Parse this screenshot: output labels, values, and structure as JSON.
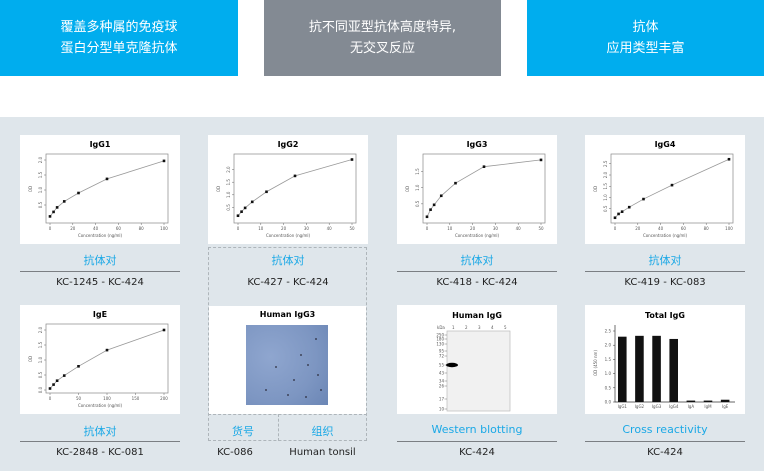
{
  "banners": [
    {
      "line1": "覆盖多种属的免疫球",
      "line2": "蛋白分型单克隆抗体"
    },
    {
      "line1": "抗不同亚型抗体高度特异,",
      "line2": "无交叉反应"
    },
    {
      "line1": "抗体",
      "line2": "应用类型丰富"
    }
  ],
  "colors": {
    "banner_blue": "#00adee",
    "banner_gray": "#838a93",
    "panel": "#dfe6eb",
    "label": "#1aa8e6"
  },
  "cards": [
    {
      "label": "抗体对",
      "code": "KC-1245 - KC-424"
    },
    {
      "label": "",
      "code": "KC-427 - KC-424"
    },
    {
      "label": "抗体对",
      "code": "KC-418 - KC-424"
    },
    {
      "label": "抗体对",
      "code": "KC-419 - KC-083"
    },
    {
      "label": "抗体对",
      "code": "KC-2848 - KC-081"
    },
    {
      "label_left": "货号",
      "label_right": "组织",
      "code_left": "KC-086",
      "code_right": "Human tonsil"
    },
    {
      "label": "Western blotting",
      "code": "KC-424"
    },
    {
      "label": "Cross reactivity",
      "code": "KC-424"
    }
  ],
  "card2_label": "抗体对",
  "ihc": {
    "title": "Human IgG3"
  },
  "western": {
    "title": "Human IgG",
    "unit": "kDa",
    "lanes": [
      "1",
      "2",
      "3",
      "4",
      "5"
    ],
    "markers": [
      "250",
      "180",
      "130",
      "95",
      "72",
      "55",
      "43",
      "34",
      "26",
      "17",
      "10"
    ],
    "band": {
      "lane": "1",
      "kDa": "55"
    }
  },
  "chart_data": [
    {
      "type": "line",
      "title": "IgG1",
      "xlabel": "Concentration (ng/ml)",
      "ylabel": "OD",
      "x": [
        0,
        3.125,
        6.25,
        12.5,
        25,
        50,
        100
      ],
      "y": [
        0.12,
        0.27,
        0.42,
        0.62,
        0.9,
        1.37,
        1.97
      ],
      "xticks": [
        0,
        20,
        40,
        60,
        80,
        100
      ],
      "yticks": [
        0.5,
        1.0,
        1.5,
        2.0
      ],
      "xlim": [
        0,
        100
      ],
      "ylim": [
        0,
        2.1
      ]
    },
    {
      "type": "line",
      "title": "IgG2",
      "xlabel": "Concentration (ng/ml)",
      "ylabel": "OD",
      "x": [
        0,
        1.5625,
        3.125,
        6.25,
        12.5,
        25,
        50
      ],
      "y": [
        0.17,
        0.33,
        0.48,
        0.72,
        1.12,
        1.75,
        2.4
      ],
      "xticks": [
        0,
        10,
        20,
        30,
        40,
        50
      ],
      "yticks": [
        0.5,
        1.0,
        1.5,
        2.0
      ],
      "xlim": [
        0,
        50
      ],
      "ylim": [
        0,
        2.5
      ]
    },
    {
      "type": "line",
      "title": "IgG3",
      "xlabel": "Concentration (ng/ml)",
      "ylabel": "OD",
      "x": [
        0,
        1.5625,
        3.125,
        6.25,
        12.5,
        25,
        50
      ],
      "y": [
        0.1,
        0.32,
        0.47,
        0.75,
        1.14,
        1.65,
        1.86
      ],
      "xticks": [
        0,
        10,
        20,
        30,
        40,
        50
      ],
      "yticks": [
        0.5,
        1.0,
        1.5
      ],
      "xlim": [
        0,
        50
      ],
      "ylim": [
        0,
        1.95
      ]
    },
    {
      "type": "line",
      "title": "IgG4",
      "xlabel": "Concentration (ng/ml)",
      "ylabel": "OD",
      "x": [
        0,
        3.125,
        6.25,
        12.5,
        25,
        50,
        100
      ],
      "y": [
        0.1,
        0.27,
        0.37,
        0.57,
        0.93,
        1.55,
        2.7
      ],
      "xticks": [
        0,
        20,
        40,
        60,
        80,
        100
      ],
      "yticks": [
        0.5,
        1.0,
        1.5,
        2.0,
        2.5
      ],
      "xlim": [
        0,
        100
      ],
      "ylim": [
        0,
        2.8
      ]
    },
    {
      "type": "line",
      "title": "IgE",
      "xlabel": "Concentration (ng/ml)",
      "ylabel": "OD",
      "x": [
        0,
        6.25,
        12.5,
        25,
        50,
        100,
        200
      ],
      "y": [
        0.05,
        0.18,
        0.31,
        0.48,
        0.79,
        1.33,
        2.0
      ],
      "xticks": [
        0,
        50,
        100,
        150,
        200
      ],
      "yticks": [
        0.0,
        0.5,
        1.0,
        1.5,
        2.0
      ],
      "xlim": [
        0,
        200
      ],
      "ylim": [
        0,
        2.1
      ]
    },
    {
      "type": "bar",
      "title": "Total IgG",
      "ylabel": "OD (450 nm)",
      "categories": [
        "IgG1",
        "IgG2",
        "IgG3",
        "IgG4",
        "IgA",
        "IgM",
        "IgE"
      ],
      "values": [
        2.3,
        2.33,
        2.33,
        2.22,
        0.05,
        0.05,
        0.08
      ],
      "yticks": [
        0.0,
        0.5,
        1.0,
        1.5,
        2.0,
        2.5
      ],
      "ylim": [
        0,
        2.5
      ]
    }
  ]
}
